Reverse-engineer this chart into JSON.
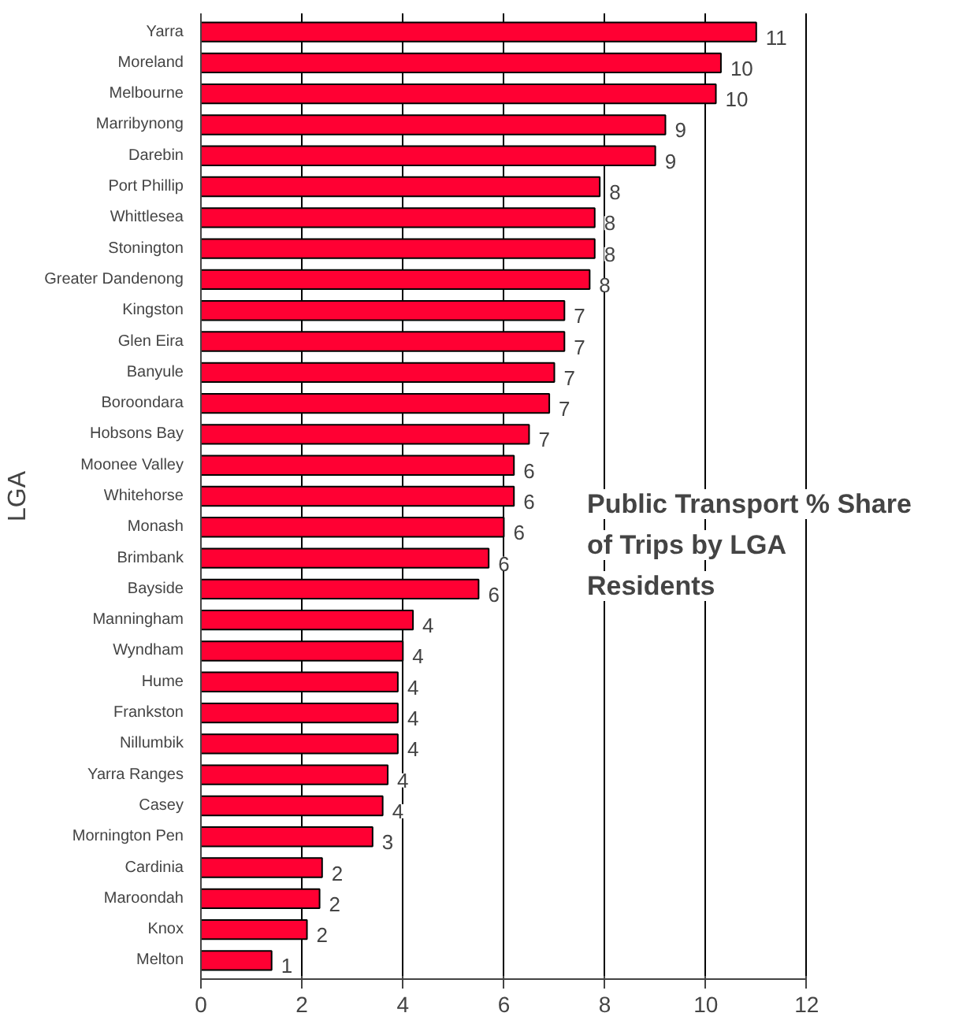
{
  "chart_data": {
    "type": "bar",
    "orientation": "horizontal",
    "title": "Public Transport % Share\n of Trips by LGA\nResidents",
    "ylabel": "LGA",
    "categories": [
      "Yarra",
      "Moreland",
      "Melbourne",
      "Marribynong",
      "Darebin",
      "Port Phillip",
      "Whittlesea",
      "Stonington",
      "Greater Dandenong",
      "Kingston",
      "Glen Eira",
      "Banyule",
      "Boroondara",
      "Hobsons Bay",
      "Moonee Valley",
      "Whitehorse",
      "Monash",
      "Brimbank",
      "Bayside",
      "Manningham",
      "Wyndham",
      "Hume",
      "Frankston",
      "Nillumbik",
      "Yarra Ranges",
      "Casey",
      "Mornington Pen",
      "Cardinia",
      "Maroondah",
      "Knox",
      "Melton"
    ],
    "values": [
      11.0,
      10.3,
      10.2,
      9.2,
      9.0,
      7.9,
      7.8,
      7.8,
      7.7,
      7.2,
      7.2,
      7.0,
      6.9,
      6.5,
      6.2,
      6.2,
      6.0,
      5.7,
      5.5,
      4.2,
      4.0,
      3.9,
      3.9,
      3.9,
      3.7,
      3.6,
      3.4,
      2.4,
      2.35,
      2.1,
      1.4
    ],
    "value_labels": [
      "11",
      "10",
      "10",
      "9",
      "9",
      "8",
      "8",
      "8",
      "8",
      "7",
      "7",
      "7",
      "7",
      "7",
      "6",
      "6",
      "6",
      "6",
      "6",
      "4",
      "4",
      "4",
      "4",
      "4",
      "4",
      "4",
      "3",
      "2",
      "2",
      "2",
      "1"
    ],
    "color": "#ff0033",
    "xlim": [
      0,
      12
    ],
    "xticks": [
      0,
      2,
      4,
      6,
      8,
      10,
      12
    ],
    "grid": "x",
    "legend": false
  }
}
